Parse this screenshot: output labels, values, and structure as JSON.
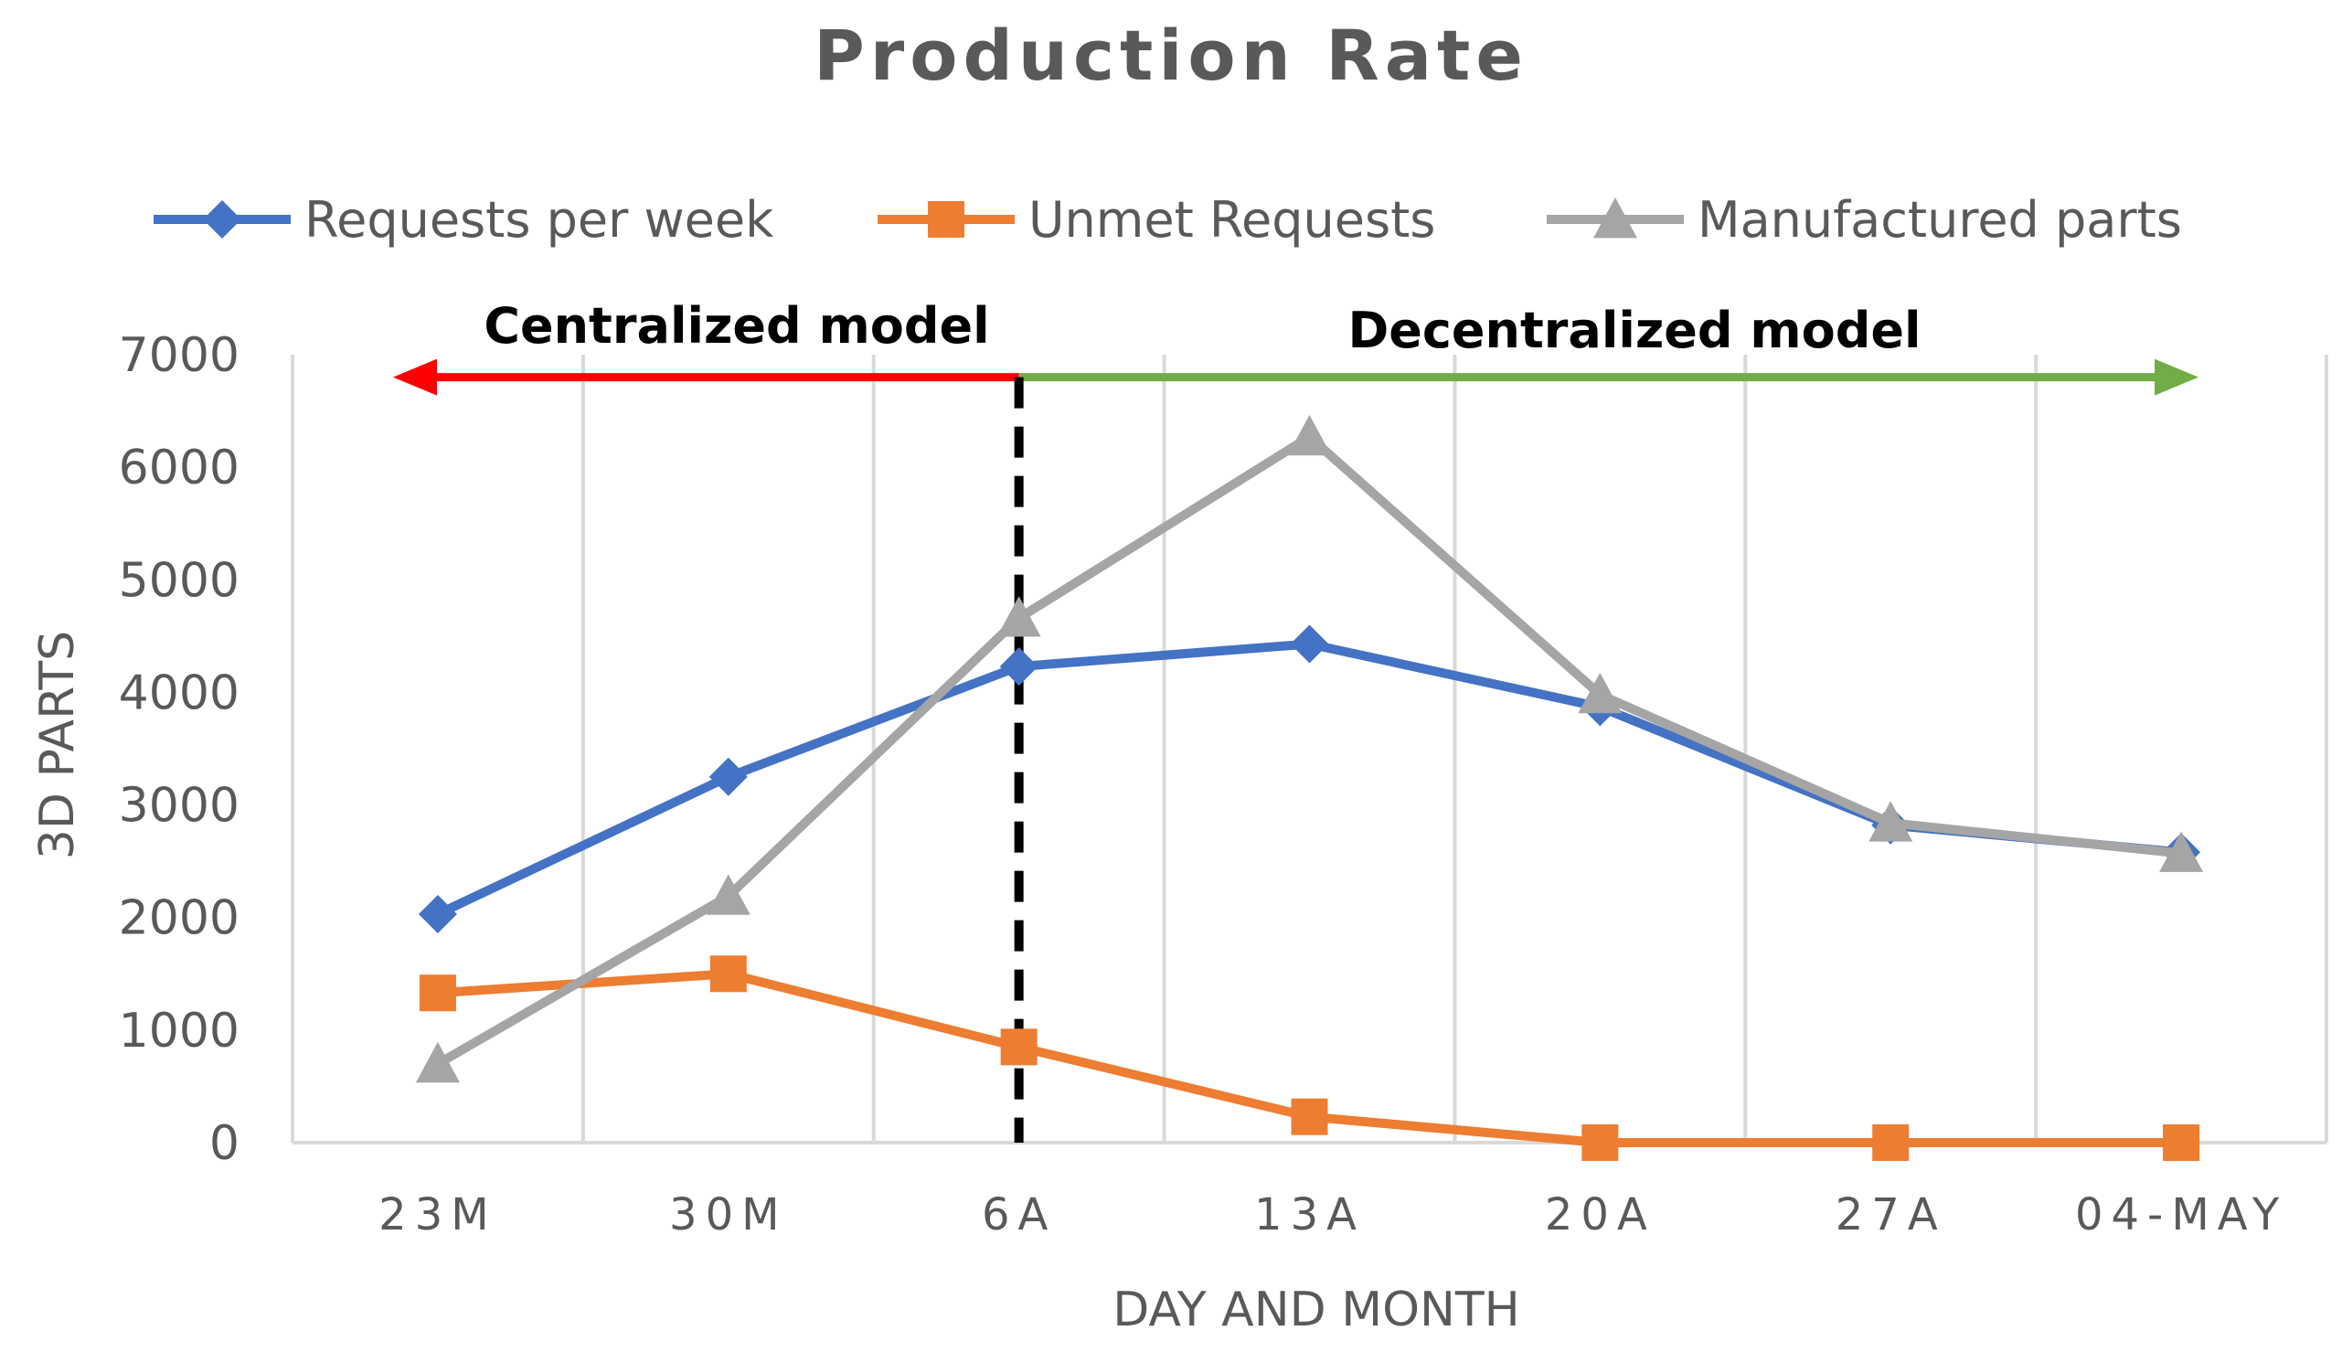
{
  "chart_data": {
    "type": "line",
    "title": "Production Rate",
    "xlabel": "DAY AND MONTH",
    "ylabel": "3D PARTS",
    "categories": [
      "23M",
      "30M",
      "6A",
      "13A",
      "20A",
      "27A",
      "04-MAY"
    ],
    "ylim": [
      0,
      7000
    ],
    "yticks": [
      0,
      1000,
      2000,
      3000,
      4000,
      5000,
      6000,
      7000
    ],
    "grid": "vertical",
    "legend_position": "top",
    "series": [
      {
        "name": "Requests per week",
        "marker": "diamond",
        "color": "#4472C4",
        "values": [
          2030,
          3250,
          4230,
          4430,
          3870,
          2820,
          2580
        ]
      },
      {
        "name": "Unmet Requests",
        "marker": "square",
        "color": "#ED7D31",
        "values": [
          1330,
          1500,
          850,
          230,
          0,
          0,
          0
        ]
      },
      {
        "name": "Manufactured parts",
        "marker": "triangle",
        "color": "#A5A5A5",
        "values": [
          700,
          2190,
          4660,
          6270,
          3980,
          2840,
          2570
        ]
      }
    ],
    "annotations": {
      "divider_category": "6A",
      "centralized": {
        "label": "Centralized model",
        "color": "#FF0000",
        "direction": "left"
      },
      "decentralized": {
        "label": "Decentralized model",
        "color": "#70AD47",
        "direction": "right"
      },
      "arrow_level": 6800
    }
  }
}
